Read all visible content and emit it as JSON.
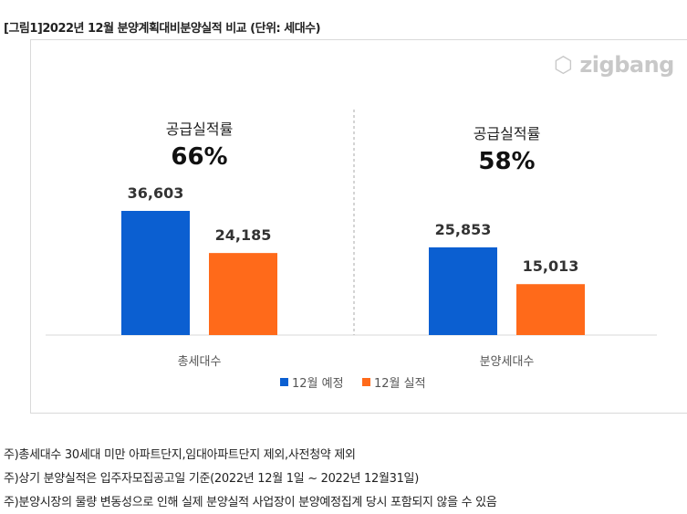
{
  "title": "[그림1]2022년 12월 분양계획대비분양실적 비교 (단위: 세대수)",
  "logo": "zigbang",
  "chart_data": {
    "type": "bar",
    "categories": [
      "총세대수",
      "분양세대수"
    ],
    "series": [
      {
        "name": "12월 예정",
        "color": "#0b5fd1",
        "values": [
          36603,
          25853
        ],
        "labels": [
          "36,603",
          "25,853"
        ]
      },
      {
        "name": "12월 실적",
        "color": "#ff6a1a",
        "values": [
          24185,
          15013
        ],
        "labels": [
          "24,185",
          "15,013"
        ]
      }
    ],
    "annotations": [
      {
        "label": "공급실적률",
        "value": "66%"
      },
      {
        "label": "공급실적률",
        "value": "58%"
      }
    ],
    "ylim": [
      0,
      40000
    ],
    "legend": "bottom"
  },
  "notes": [
    "주)총세대수 30세대 미만 아파트단지,임대아파트단지 제외,사전청약 제외",
    "주)상기 분양실적은 입주자모집공고일 기준(2022년 12월 1일 ~ 2022년 12월31일)",
    "주)분양시장의 물량 변동성으로 인해 실제 분양실적 사업장이 분양예정집계 당시 포함되지 않을 수 있음"
  ]
}
